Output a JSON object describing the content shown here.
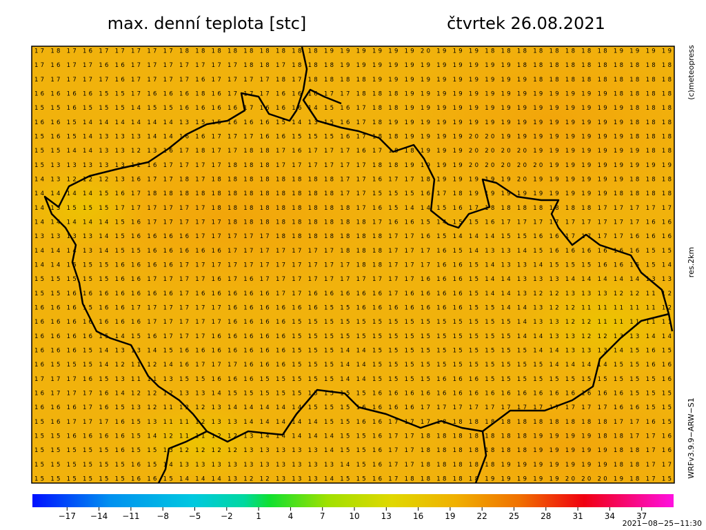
{
  "header": {
    "title": "max. denní teplota [stc]",
    "date": "čtvrtek 26.08.2021"
  },
  "side": {
    "copyright": "(c)meteopress",
    "resolution": "res.2km",
    "model": "WRFv3.9.9−ARW−S1"
  },
  "colorbar": {
    "lim": [
      -20,
      40
    ],
    "ticks": [
      {
        "value": -17,
        "label": "−17"
      },
      {
        "value": -14,
        "label": "−14"
      },
      {
        "value": -11,
        "label": "−11"
      },
      {
        "value": -8,
        "label": "−8"
      },
      {
        "value": -5,
        "label": "−5"
      },
      {
        "value": -2,
        "label": "−2"
      },
      1,
      4,
      7,
      10,
      13,
      16,
      19,
      22,
      25,
      28,
      31,
      34,
      37
    ]
  },
  "footer": {
    "timestamp": "2021−08−25−11:30"
  },
  "grid": {
    "rows": [
      "17 18 17 16 17 17 17 17 17 18 18 18 18 18 18 18 18 18 19 19 19 19 19 19 20 19 19 19 18 18 18 18 18 18 18 18 19 19 19 19",
      "17 16 17 17 16 16 17 17 17 17 17 17 17 18 18 17 18 18 18 19 19 19 19 19 19 19 19 19 19 19 18 18 18 18 18 18 18 18 18 18",
      "17 17 17 17 17 16 17 17 17 17 16 17 17 17 17 18 17 18 18 18 18 19 19 19 19 19 19 19 19 19 19 18 18 18 18 18 18 18 18 18",
      "16 16 16 16 15 15 17 16 16 16 18 16 17 17 17 16 16 16 17 17 18 18 18 19 19 19 19 19 19 19 19 19 19 19 19 19 18 18 18 18",
      "15 15 16 15 15 15 14 15 15 16 16 16 16 17 16 16 16 14 15 16 17 18 18 19 19 19 19 19 19 19 19 19 19 19 19 19 19 18 18 18",
      "16 16 15 14 14 14 14 14 14 13 15 15 16 16 16 15 14 13 15 16 17 18 19 19 19 19 19 19 19 19 19 19 19 19 19 19 19 18 18 18",
      "15 16 15 14 13 13 13 14 14 16 16 17 17 17 16 16 15 15 15 16 17 18 18 19 19 19 19 20 20 19 19 19 19 19 19 19 19 18 18 18",
      "15 15 14 14 13 13 12 13 16 17 18 17 17 18 18 17 16 17 17 17 16 17 18 18 19 19 19 20 20 20 20 19 19 19 19 19 19 19 18 18",
      "15 13 13 13 13 13 12 16 17 17 17 17 18 18 18 17 17 17 17 17 17 18 18 19 19 19 19 20 20 20 20 20 19 19 19 19 19 19 19 19",
      "14 13 12 12 12 13 16 17 17 18 17 18 18 18 18 18 18 18 18 17 17 16 17 17 18 19 19 19 19 19 20 19 19 19 19 19 19 18 18 18",
      "14 14 14 14 15 16 17 18 18 18 18 18 18 18 18 18 18 18 18 17 17 15 15 15 16 17 18 19 19 19 19 19 19 19 19 19 18 18 18 18",
      "14 15 15 15 15 17 17 17 17 17 17 18 18 18 18 18 18 18 18 18 17 16 15 14 14 15 16 17 18 18 18 18 18 18 18 17 17 17 17 17",
      "14 14 14 14 14 15 16 17 17 17 17 17 18 18 18 18 18 18 18 18 18 17 16 16 15 14 15 15 16 17 17 17 17 17 17 17 17 17 16 16",
      "13 13 13 13 14 15 16 16 16 16 17 17 17 17 17 18 18 18 18 18 18 18 17 17 16 15 14 14 14 15 15 16 16 17 17 17 17 16 16 16",
      "14 14 14 13 14 15 15 16 16 16 16 16 17 17 17 17 17 17 17 18 18 18 17 17 17 16 15 14 13 13 14 15 16 16 16 16 16 16 15 15",
      "14 14 15 15 15 16 16 16 16 17 17 17 17 17 17 17 17 17 17 17 18 18 17 17 17 16 16 15 14 13 13 14 15 15 15 16 16 15 15 14",
      "15 15 15 15 15 16 16 17 17 17 17 16 17 16 17 17 17 17 17 17 17 17 17 17 16 16 16 15 14 14 13 13 13 14 14 14 14 14 13 13",
      "15 15 16 16 16 16 16 16 16 17 16 16 16 16 16 17 17 16 16 16 16 16 17 16 16 16 16 15 14 14 13 12 12 13 13 13 12 12 11 12",
      "16 16 16 15 16 16 17 17 17 17 17 17 16 16 16 16 16 16 15 15 16 16 16 16 16 16 16 15 15 14 14 13 12 12 11 11 11 11 11 12",
      "16 16 16 16 16 16 16 17 17 17 17 17 16 16 16 16 15 15 15 15 15 15 15 15 15 15 15 15 15 15 14 13 13 12 12 11 11 11 11 11",
      "16 16 16 16 15 14 15 16 17 17 17 16 16 16 16 16 15 15 15 15 15 15 15 15 15 15 15 15 15 15 14 14 13 13 12 12 13 13 14 14",
      "16 16 16 15 14 13 13 14 15 16 16 16 16 16 16 16 15 15 15 14 14 15 15 15 15 15 15 15 15 15 15 14 14 13 13 13 14 15 16 15",
      "16 15 15 15 14 12 11 12 14 16 17 17 17 16 16 16 15 15 15 14 14 15 15 15 15 15 15 15 15 15 15 15 14 14 14 14 15 15 16 16",
      "17 17 17 16 15 13 11 11 13 15 15 16 16 16 15 15 15 15 15 14 14 15 15 15 15 16 16 16 15 15 15 15 15 15 15 15 15 15 15 16",
      "16 17 17 17 16 14 12 12 12 13 13 14 15 15 15 15 15 15 15 15 15 16 16 16 16 16 16 16 16 16 16 16 16 16 16 16 16 15 15 15",
      "16 16 16 17 16 15 13 12 11 12 12 13 14 14 14 14 14 15 15 15 16 16 16 16 17 17 17 17 17 17 17 17 17 17 17 17 16 16 15 15",
      "15 16 17 17 17 16 15 13 11 11 12 13 13 14 14 14 14 14 15 15 16 16 17 17 17 18 18 18 18 18 18 18 18 18 18 18 17 17 16 15",
      "15 15 16 16 16 16 15 14 12 11 11 12 12 13 14 14 14 14 14 15 15 16 17 17 18 18 18 18 18 18 18 19 19 19 19 18 18 17 17 16",
      "15 15 15 15 15 16 15 15 13 12 12 12 12 13 13 13 13 13 14 15 15 16 17 17 18 18 18 18 18 18 18 19 19 19 19 19 18 18 17 16",
      "15 15 15 15 15 15 16 15 14 13 13 13 13 13 13 13 13 13 13 14 15 16 17 17 18 18 18 18 18 19 19 19 19 19 19 19 18 18 17 17",
      "15 15 15 15 15 15 16 16 15 14 14 14 13 12 12 13 13 13 14 15 15 16 17 18 18 18 18 18 19 19 19 19 19 20 20 20 19 18 17 15"
    ]
  }
}
